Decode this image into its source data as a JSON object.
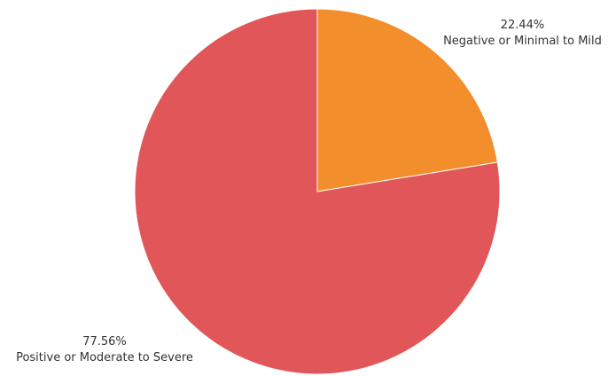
{
  "chart_data": {
    "type": "pie",
    "title": "",
    "categories": [
      "Negative or Minimal to Mild",
      "Positive or Moderate to Severe"
    ],
    "values": [
      22.44,
      77.56
    ],
    "value_labels": [
      "22.44%",
      "77.56%"
    ],
    "colors": [
      "#f28e2b",
      "#e15759"
    ],
    "start_angle": "12 o'clock",
    "direction": "clockwise",
    "legend": "none"
  }
}
